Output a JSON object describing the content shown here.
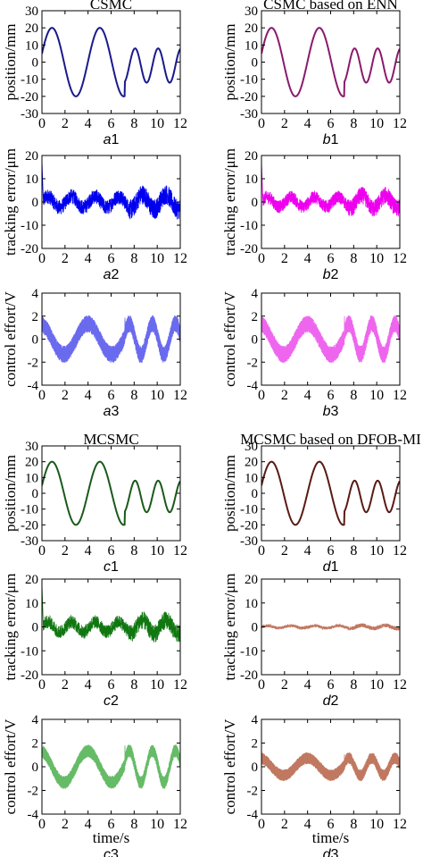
{
  "colors": {
    "a": "#1a1a8c",
    "b": "#8b1a6b",
    "c": "#1a5a1a",
    "d": "#5a1a14",
    "a_noise": "#0000ee",
    "b_noise": "#ee00ee",
    "c_noise": "#117711",
    "d_noise": "#c07860",
    "a_effort": "#6a6aee",
    "b_effort": "#ee66ee",
    "c_effort": "#66bb66",
    "d_effort": "#c07860"
  },
  "chart_data": [
    {
      "id": "a1",
      "type": "line",
      "title": "CSMC",
      "panel_label": "a1",
      "xlabel": "",
      "ylabel": "position/mm",
      "xlim": [
        0,
        12
      ],
      "ylim": [
        -30,
        30
      ],
      "xticks": [
        "0",
        "2",
        "4",
        "6",
        "8",
        "10",
        "12"
      ],
      "yticks": [
        "-30",
        "-20",
        "-10",
        "0",
        "10",
        "20",
        "30"
      ],
      "signal": "position",
      "color_key": "a",
      "series": [
        {
          "x": [
            0,
            0.9,
            2.05,
            3.2,
            4.05,
            4.95,
            5.85,
            6.85,
            7.85,
            8.55,
            9.25,
            9.95,
            10.55,
            11.2,
            11.85,
            12
          ],
          "y": [
            5,
            20,
            0,
            -20,
            -8,
            20,
            7,
            -20,
            -5,
            10,
            -3,
            0,
            10,
            -3,
            -5,
            2
          ]
        }
      ]
    },
    {
      "id": "b1",
      "type": "line",
      "title": "CSMC based on ENN",
      "panel_label": "b1",
      "xlabel": "",
      "ylabel": "position/mm",
      "xlim": [
        0,
        12
      ],
      "ylim": [
        -30,
        30
      ],
      "xticks": [
        "0",
        "2",
        "4",
        "6",
        "8",
        "10",
        "12"
      ],
      "yticks": [
        "-30",
        "-20",
        "-10",
        "0",
        "10",
        "20",
        "30"
      ],
      "signal": "position",
      "color_key": "b",
      "series": [
        {
          "x": [
            0,
            0.9,
            2.05,
            3.2,
            4.05,
            4.95,
            5.85,
            6.85,
            7.85,
            8.55,
            9.25,
            9.95,
            10.55,
            11.2,
            11.85,
            12
          ],
          "y": [
            5,
            20,
            0,
            -20,
            -8,
            20,
            7,
            -20,
            -5,
            10,
            -3,
            0,
            10,
            -3,
            -5,
            2
          ]
        }
      ]
    },
    {
      "id": "a2",
      "type": "line",
      "title": "",
      "panel_label": "a2",
      "xlabel": "",
      "ylabel": "tracking error/μm",
      "xlim": [
        0,
        12
      ],
      "ylim": [
        -20,
        20
      ],
      "xticks": [
        "0",
        "2",
        "4",
        "6",
        "8",
        "10",
        "12"
      ],
      "yticks": [
        "-20",
        "-10",
        "0",
        "10",
        "20"
      ],
      "signal": "error",
      "color_key": "a_noise",
      "amplitude": 4,
      "spike": 18
    },
    {
      "id": "b2",
      "type": "line",
      "title": "",
      "panel_label": "b2",
      "xlabel": "",
      "ylabel": "tracking error/μm",
      "xlim": [
        0,
        12
      ],
      "ylim": [
        -20,
        20
      ],
      "xticks": [
        "0",
        "2",
        "4",
        "6",
        "8",
        "10",
        "12"
      ],
      "yticks": [
        "-20",
        "-10",
        "0",
        "10",
        "20"
      ],
      "signal": "error",
      "color_key": "b_noise",
      "amplitude": 3.5,
      "spike": 18
    },
    {
      "id": "a3",
      "type": "line",
      "title": "",
      "panel_label": "a3",
      "xlabel": "",
      "ylabel": "control effort/V",
      "xlim": [
        0,
        12
      ],
      "ylim": [
        -4,
        4
      ],
      "xticks": [
        "0",
        "2",
        "4",
        "6",
        "8",
        "10",
        "12"
      ],
      "yticks": [
        "-4",
        "-2",
        "0",
        "2",
        "4"
      ],
      "signal": "effort",
      "color_key": "a_effort",
      "amplitude": 1.1,
      "band": 0.75
    },
    {
      "id": "b3",
      "type": "line",
      "title": "",
      "panel_label": "b3",
      "xlabel": "",
      "ylabel": "control effort/V",
      "xlim": [
        0,
        12
      ],
      "ylim": [
        -4,
        4
      ],
      "xticks": [
        "0",
        "2",
        "4",
        "6",
        "8",
        "10",
        "12"
      ],
      "yticks": [
        "-4",
        "-2",
        "0",
        "2",
        "4"
      ],
      "signal": "effort",
      "color_key": "b_effort",
      "amplitude": 1.1,
      "band": 0.75
    },
    {
      "id": "c1",
      "type": "line",
      "title": "MCSMC",
      "panel_label": "c1",
      "xlabel": "",
      "ylabel": "position/mm",
      "xlim": [
        0,
        12
      ],
      "ylim": [
        -30,
        30
      ],
      "xticks": [
        "0",
        "2",
        "4",
        "6",
        "8",
        "10",
        "12"
      ],
      "yticks": [
        "-30",
        "-20",
        "-10",
        "0",
        "10",
        "20",
        "30"
      ],
      "signal": "position",
      "color_key": "c",
      "series": [
        {
          "x": [
            0,
            0.9,
            2.05,
            3.2,
            4.05,
            4.95,
            5.85,
            6.85,
            7.85,
            8.55,
            9.25,
            9.95,
            10.55,
            11.2,
            11.85,
            12
          ],
          "y": [
            5,
            20,
            0,
            -20,
            -8,
            20,
            7,
            -20,
            -5,
            10,
            -3,
            0,
            10,
            -3,
            -5,
            2
          ]
        }
      ]
    },
    {
      "id": "d1",
      "type": "line",
      "title": "MCSMC based on DFOB-MI",
      "panel_label": "d1",
      "xlabel": "",
      "ylabel": "position/mm",
      "xlim": [
        0,
        12
      ],
      "ylim": [
        -30,
        30
      ],
      "xticks": [
        "0",
        "2",
        "4",
        "6",
        "8",
        "10",
        "12"
      ],
      "yticks": [
        "-30",
        "-20",
        "-10",
        "0",
        "10",
        "20",
        "30"
      ],
      "signal": "position",
      "color_key": "d",
      "series": [
        {
          "x": [
            0,
            0.9,
            2.05,
            3.2,
            4.05,
            4.95,
            5.85,
            6.85,
            7.85,
            8.55,
            9.25,
            9.95,
            10.55,
            11.2,
            11.85,
            12
          ],
          "y": [
            0,
            20,
            0,
            -20,
            -8,
            20,
            7,
            -20,
            -5,
            10,
            -3,
            0,
            10,
            -3,
            -5,
            0
          ]
        }
      ]
    },
    {
      "id": "c2",
      "type": "line",
      "title": "",
      "panel_label": "c2",
      "xlabel": "",
      "ylabel": "tracking error/μm",
      "xlim": [
        0,
        12
      ],
      "ylim": [
        -20,
        20
      ],
      "xticks": [
        "0",
        "2",
        "4",
        "6",
        "8",
        "10",
        "12"
      ],
      "yticks": [
        "-20",
        "-10",
        "0",
        "10",
        "20"
      ],
      "signal": "error",
      "color_key": "c_noise",
      "amplitude": 3.5,
      "spike": 18
    },
    {
      "id": "d2",
      "type": "line",
      "title": "",
      "panel_label": "d2",
      "xlabel": "",
      "ylabel": "tracking error/μm",
      "xlim": [
        0,
        12
      ],
      "ylim": [
        -20,
        20
      ],
      "xticks": [
        "0",
        "2",
        "4",
        "6",
        "8",
        "10",
        "12"
      ],
      "yticks": [
        "-20",
        "-10",
        "0",
        "10",
        "20"
      ],
      "signal": "error",
      "color_key": "d_noise",
      "amplitude": 0.8,
      "spike": 0
    },
    {
      "id": "c3",
      "type": "line",
      "title": "",
      "panel_label": "c3",
      "xlabel": "time/s",
      "ylabel": "control effort/V",
      "xlim": [
        0,
        12
      ],
      "ylim": [
        -4,
        4
      ],
      "xticks": [
        "0",
        "2",
        "4",
        "6",
        "8",
        "10",
        "12"
      ],
      "yticks": [
        "-4",
        "-2",
        "0",
        "2",
        "4"
      ],
      "signal": "effort",
      "color_key": "c_effort",
      "amplitude": 1.1,
      "band": 0.55
    },
    {
      "id": "d3",
      "type": "line",
      "title": "",
      "panel_label": "d3",
      "xlabel": "time/s",
      "ylabel": "control effort/V",
      "xlim": [
        0,
        12
      ],
      "ylim": [
        -4,
        4
      ],
      "xticks": [
        "0",
        "2",
        "4",
        "6",
        "8",
        "10",
        "12"
      ],
      "yticks": [
        "-4",
        "-2",
        "0",
        "2",
        "4"
      ],
      "signal": "effort",
      "color_key": "d_effort",
      "amplitude": 0.6,
      "band": 0.5
    }
  ]
}
